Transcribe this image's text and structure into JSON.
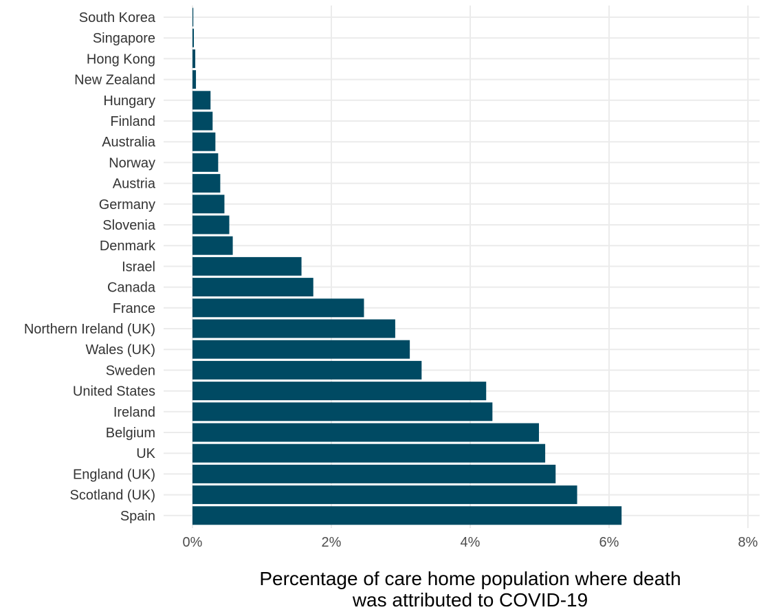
{
  "chart_data": {
    "type": "bar",
    "orientation": "horizontal",
    "categories": [
      "South Korea",
      "Singapore",
      "Hong Kong",
      "New Zealand",
      "Hungary",
      "Finland",
      "Australia",
      "Norway",
      "Austria",
      "Germany",
      "Slovenia",
      "Denmark",
      "Israel",
      "Canada",
      "France",
      "Northern Ireland (UK)",
      "Wales (UK)",
      "Sweden",
      "United States",
      "Ireland",
      "Belgium",
      "UK",
      "England (UK)",
      "Scotland (UK)",
      "Spain"
    ],
    "values": [
      0.01,
      0.02,
      0.04,
      0.05,
      0.26,
      0.29,
      0.33,
      0.37,
      0.4,
      0.46,
      0.53,
      0.58,
      1.57,
      1.74,
      2.47,
      2.92,
      3.13,
      3.3,
      4.23,
      4.32,
      4.99,
      5.08,
      5.23,
      5.54,
      6.18
    ],
    "xlim": [
      0,
      8
    ],
    "xticks": [
      "0%",
      "2%",
      "4%",
      "6%",
      "8%"
    ],
    "xlabel_lines": [
      "Percentage of care home population where death",
      "was attributed to COVID-19"
    ],
    "ylabel": "",
    "title": "",
    "bar_color": "#004a63",
    "grid": true,
    "grid_color": "#ebebeb",
    "legend": "none"
  }
}
